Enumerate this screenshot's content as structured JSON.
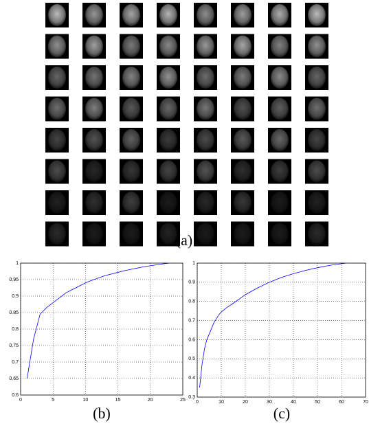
{
  "face_grid": {
    "caption": "(a)"
  },
  "chart_data": [
    {
      "type": "line",
      "caption": "(b)",
      "x": [
        1,
        2,
        3,
        4,
        5,
        6,
        7,
        8,
        9,
        10,
        11,
        12,
        13,
        14,
        15,
        16,
        17,
        18,
        19,
        20,
        21,
        22,
        23
      ],
      "series": [
        {
          "color": "#0000ff",
          "values": [
            0.65,
            0.77,
            0.845,
            0.865,
            0.88,
            0.895,
            0.91,
            0.92,
            0.93,
            0.94,
            0.948,
            0.955,
            0.962,
            0.967,
            0.972,
            0.977,
            0.981,
            0.985,
            0.989,
            0.992,
            0.995,
            0.998,
            1.0
          ]
        }
      ],
      "xlim": [
        0,
        25
      ],
      "xticks": [
        0,
        5,
        10,
        15,
        20,
        25
      ],
      "ylim": [
        0.6,
        1
      ],
      "yticks": [
        0.6,
        0.65,
        0.7,
        0.75,
        0.8,
        0.85,
        0.9,
        0.95,
        1
      ],
      "grid": true
    },
    {
      "type": "line",
      "caption": "(c)",
      "x": [
        1,
        2,
        3,
        4,
        5,
        6,
        7,
        8,
        9,
        10,
        12,
        15,
        20,
        25,
        30,
        35,
        40,
        45,
        50,
        55,
        60,
        62
      ],
      "series": [
        {
          "color": "#0000ff",
          "values": [
            0.35,
            0.47,
            0.55,
            0.6,
            0.63,
            0.66,
            0.69,
            0.71,
            0.73,
            0.745,
            0.765,
            0.79,
            0.835,
            0.87,
            0.9,
            0.925,
            0.945,
            0.962,
            0.976,
            0.988,
            0.997,
            1.0
          ]
        }
      ],
      "xlim": [
        0,
        70
      ],
      "xticks": [
        0,
        10,
        20,
        30,
        40,
        50,
        60,
        70
      ],
      "ylim": [
        0.3,
        1
      ],
      "yticks": [
        0.3,
        0.4,
        0.5,
        0.6,
        0.7,
        0.8,
        0.9,
        1
      ],
      "grid": true
    }
  ]
}
